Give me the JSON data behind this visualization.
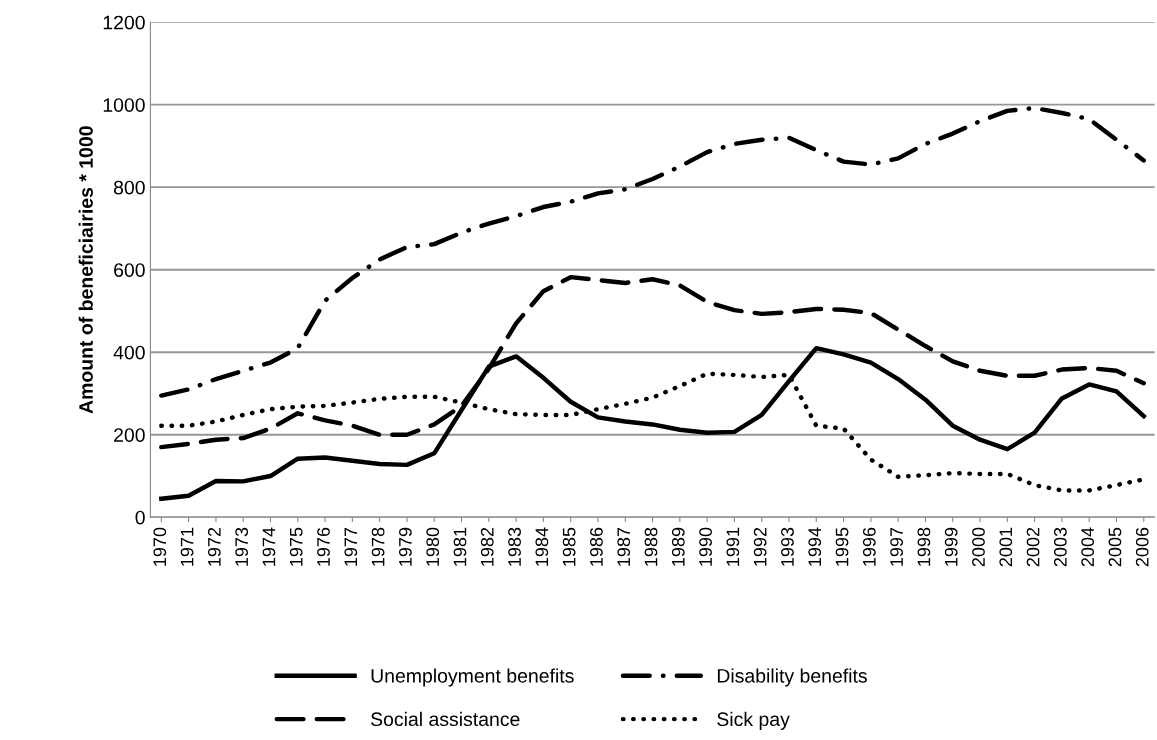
{
  "chart_data": {
    "type": "line",
    "ylabel": "Amount of beneficiairies * 1000",
    "categories": [
      "1970",
      "1971",
      "1972",
      "1973",
      "1974",
      "1975",
      "1976",
      "1977",
      "1978",
      "1979",
      "1980",
      "1981",
      "1982",
      "1983",
      "1984",
      "1985",
      "1986",
      "1987",
      "1988",
      "1989",
      "1990",
      "1991",
      "1992",
      "1993",
      "1994",
      "1995",
      "1996",
      "1997",
      "1998",
      "1999",
      "2000",
      "2001",
      "2002",
      "2003",
      "2004",
      "2005",
      "2006"
    ],
    "series": [
      {
        "name": "Unemployment benefits",
        "color": "#000000",
        "line_style": "solid",
        "values": [
          45,
          52,
          88,
          87,
          100,
          142,
          145,
          137,
          129,
          127,
          155,
          260,
          365,
          390,
          338,
          280,
          242,
          232,
          225,
          212,
          205,
          207,
          248,
          330,
          410,
          395,
          375,
          335,
          285,
          222,
          188,
          165,
          205,
          288,
          322,
          305,
          245
        ]
      },
      {
        "name": "Disability benefits",
        "color": "#000000",
        "line_style": "dashdot",
        "values": [
          295,
          310,
          335,
          355,
          375,
          410,
          525,
          580,
          625,
          655,
          662,
          690,
          712,
          730,
          752,
          765,
          785,
          795,
          820,
          850,
          885,
          905,
          915,
          920,
          890,
          862,
          855,
          870,
          905,
          930,
          960,
          985,
          992,
          980,
          965,
          915,
          865
        ]
      },
      {
        "name": "Social assistance",
        "color": "#000000",
        "line_style": "dashed",
        "values": [
          170,
          178,
          188,
          192,
          215,
          252,
          235,
          222,
          200,
          200,
          225,
          270,
          360,
          470,
          548,
          582,
          575,
          568,
          577,
          562,
          522,
          502,
          493,
          497,
          505,
          503,
          495,
          455,
          415,
          378,
          355,
          343,
          343,
          358,
          362,
          355,
          325
        ]
      },
      {
        "name": "Sick pay",
        "color": "#000000",
        "line_style": "dotted",
        "values": [
          222,
          222,
          232,
          248,
          262,
          268,
          270,
          278,
          287,
          292,
          292,
          278,
          262,
          250,
          248,
          248,
          262,
          275,
          290,
          318,
          348,
          345,
          340,
          345,
          222,
          215,
          140,
          98,
          102,
          107,
          105,
          105,
          78,
          65,
          65,
          78,
          92
        ]
      }
    ],
    "ylim": [
      0,
      1200
    ],
    "yticks": [
      0,
      200,
      400,
      600,
      800,
      1000,
      1200
    ],
    "grid": "y",
    "legend": "bottom",
    "marker": "none"
  }
}
